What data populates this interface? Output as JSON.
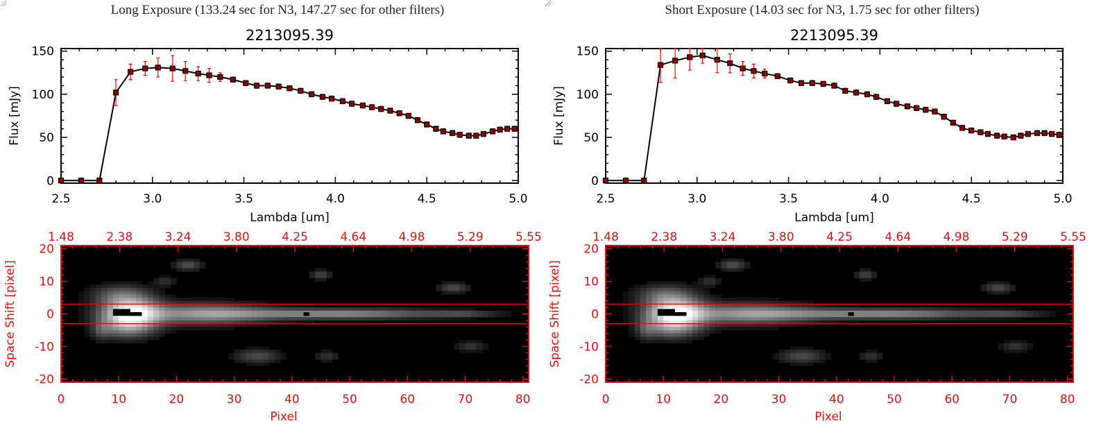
{
  "panels": [
    {
      "exposure_title": "Long Exposure (133.24 sec for N3, 147.27 sec for other filters)",
      "plot_title": "2213095.39",
      "spectrum": {
        "type": "line",
        "xlabel": "Lambda [um]",
        "ylabel": "Flux [mJy]",
        "xlim": [
          2.5,
          5.0
        ],
        "ylim": [
          -3,
          153
        ],
        "xticks": [
          "2.5",
          "3.0",
          "3.5",
          "4.0",
          "4.5",
          "5.0"
        ],
        "yticks": [
          "0",
          "50",
          "100",
          "150"
        ],
        "x": [
          2.5,
          2.61,
          2.71,
          2.8,
          2.88,
          2.96,
          3.03,
          3.11,
          3.18,
          3.25,
          3.31,
          3.37,
          3.44,
          3.51,
          3.57,
          3.63,
          3.69,
          3.75,
          3.81,
          3.87,
          3.93,
          3.98,
          4.04,
          4.09,
          4.15,
          4.2,
          4.25,
          4.3,
          4.35,
          4.4,
          4.45,
          4.5,
          4.55,
          4.59,
          4.64,
          4.68,
          4.73,
          4.77,
          4.81,
          4.86,
          4.9,
          4.94,
          4.98
        ],
        "y": [
          0,
          0,
          0,
          102,
          126,
          130,
          131,
          130,
          127,
          124,
          122,
          120,
          117,
          113,
          110,
          110,
          109,
          107,
          104,
          100,
          97,
          95,
          92,
          89,
          87,
          85,
          83,
          81,
          78,
          75,
          70,
          65,
          60,
          57,
          55,
          53,
          52,
          52,
          54,
          57,
          59,
          60,
          60
        ],
        "yerr": [
          0,
          0,
          0,
          15,
          9,
          8,
          11,
          15,
          11,
          8,
          8,
          5,
          3,
          3,
          3,
          3,
          3,
          3,
          3,
          3,
          3,
          3,
          3,
          3,
          3,
          3,
          3,
          3,
          3,
          3,
          3,
          3,
          3,
          3,
          3,
          3,
          3,
          3,
          3,
          3,
          3,
          3,
          3
        ]
      },
      "image": {
        "xlabel": "Pixel",
        "ylabel": "Space Shift [pixel]",
        "xticks": [
          "0",
          "10",
          "20",
          "30",
          "40",
          "50",
          "60",
          "70",
          "80"
        ],
        "yticks": [
          "20",
          "10",
          "0",
          "-10",
          "-20"
        ],
        "top_ticks": [
          "1.48",
          "2.38",
          "3.24",
          "3.80",
          "4.25",
          "4.64",
          "4.98",
          "5.29",
          "5.55"
        ],
        "aperture_lines": [
          3,
          -3
        ]
      }
    },
    {
      "exposure_title": "Short Exposure (14.03 sec for N3, 1.75 sec for other filters)",
      "plot_title": "2213095.39",
      "spectrum": {
        "type": "line",
        "xlabel": "Lambda [um]",
        "ylabel": "Flux [mJy]",
        "xlim": [
          2.5,
          5.0
        ],
        "ylim": [
          -3,
          153
        ],
        "xticks": [
          "2.5",
          "3.0",
          "3.5",
          "4.0",
          "4.5",
          "5.0"
        ],
        "yticks": [
          "0",
          "50",
          "100",
          "150"
        ],
        "x": [
          2.5,
          2.61,
          2.71,
          2.8,
          2.88,
          2.96,
          3.03,
          3.11,
          3.18,
          3.25,
          3.31,
          3.37,
          3.44,
          3.51,
          3.57,
          3.63,
          3.69,
          3.75,
          3.81,
          3.87,
          3.93,
          3.98,
          4.04,
          4.09,
          4.15,
          4.2,
          4.25,
          4.3,
          4.35,
          4.4,
          4.45,
          4.5,
          4.55,
          4.59,
          4.64,
          4.68,
          4.73,
          4.77,
          4.81,
          4.86,
          4.9,
          4.94,
          4.98
        ],
        "y": [
          0,
          0,
          0,
          134,
          139,
          143,
          145,
          140,
          136,
          130,
          127,
          124,
          121,
          116,
          113,
          113,
          112,
          110,
          104,
          102,
          100,
          97,
          92,
          89,
          86,
          84,
          82,
          80,
          74,
          67,
          61,
          58,
          56,
          54,
          52,
          51,
          50,
          52,
          54,
          55,
          55,
          54,
          53
        ],
        "yerr": [
          0,
          0,
          0,
          20,
          20,
          15,
          9,
          15,
          11,
          8,
          8,
          5,
          3,
          3,
          3,
          3,
          3,
          3,
          3,
          3,
          3,
          3,
          3,
          3,
          3,
          3,
          3,
          3,
          3,
          3,
          3,
          3,
          3,
          3,
          3,
          3,
          3,
          3,
          3,
          3,
          3,
          3,
          3
        ]
      },
      "image": {
        "xlabel": "Pixel",
        "ylabel": "Space Shift [pixel]",
        "xticks": [
          "0",
          "10",
          "20",
          "30",
          "40",
          "50",
          "60",
          "70",
          "80"
        ],
        "yticks": [
          "20",
          "10",
          "0",
          "-10",
          "-20"
        ],
        "top_ticks": [
          "1.48",
          "2.38",
          "3.24",
          "3.80",
          "4.25",
          "4.64",
          "4.98",
          "5.29",
          "5.55"
        ],
        "aperture_lines": [
          3,
          -3
        ]
      }
    }
  ],
  "chart_data": [
    {
      "type": "line",
      "title": "2213095.39",
      "xlabel": "Lambda [um]",
      "ylabel": "Flux [mJy]",
      "xlim": [
        2.5,
        5.0
      ],
      "ylim": [
        -3,
        153
      ],
      "series": [
        {
          "values_ref": "panels.0.spectrum"
        }
      ]
    },
    {
      "type": "heatmap",
      "xlabel": "Pixel",
      "ylabel": "Space Shift [pixel]",
      "xlim": [
        0,
        81
      ],
      "ylim": [
        -21,
        21
      ]
    },
    {
      "type": "line",
      "title": "2213095.39",
      "xlabel": "Lambda [um]",
      "ylabel": "Flux [mJy]",
      "xlim": [
        2.5,
        5.0
      ],
      "ylim": [
        -3,
        153
      ],
      "series": [
        {
          "values_ref": "panels.1.spectrum"
        }
      ]
    },
    {
      "type": "heatmap",
      "xlabel": "Pixel",
      "ylabel": "Space Shift [pixel]",
      "xlim": [
        0,
        81
      ],
      "ylim": [
        -21,
        21
      ]
    }
  ],
  "colors": {
    "axis": "#000000",
    "red_axis": "#e01010",
    "error_bar": "#ff0000",
    "marker_fill": "#8b0000",
    "aperture_line": "#cc1010"
  }
}
